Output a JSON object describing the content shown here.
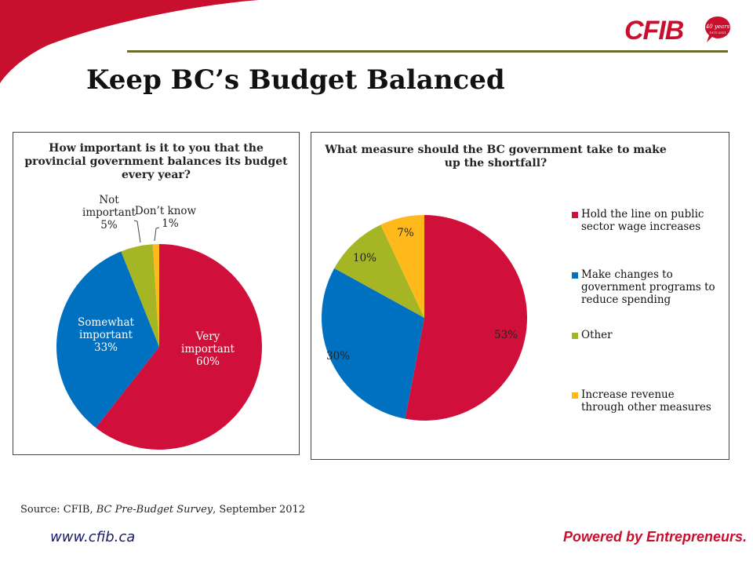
{
  "colors": {
    "red": "#D0103A",
    "blue": "#0070C0",
    "olive": "#A6B523",
    "orange": "#FFB91B",
    "brand_red": "#C8102E"
  },
  "header": {
    "title": "Keep BC’s Budget Balanced",
    "logo_text": "CFIB",
    "badge_line1": "40 years",
    "badge_line2": "1971-2011"
  },
  "chart_data": [
    {
      "type": "pie",
      "title": "How important is it to you that the provincial government balances its budget every year?",
      "slices": [
        {
          "label_lines": [
            "Very",
            "important",
            "60%"
          ],
          "value": 60,
          "color": "#D0103A"
        },
        {
          "label_lines": [
            "Somewhat",
            "important",
            "33%"
          ],
          "value": 33,
          "color": "#0070C0"
        },
        {
          "label_lines": [
            "Not",
            "important",
            "5%"
          ],
          "value": 5,
          "color": "#A6B523"
        },
        {
          "label_lines": [
            "Don’t know",
            "1%"
          ],
          "value": 1,
          "color": "#FFB91B"
        }
      ]
    },
    {
      "type": "pie",
      "title": "What measure should the BC government take to make up the shortfall?",
      "legend": "right",
      "slices": [
        {
          "name": "Hold the line on public sector wage increases",
          "value": 53,
          "value_label": "53%",
          "color": "#D0103A"
        },
        {
          "name": "Make changes to government programs to reduce spending",
          "value": 30,
          "value_label": "30%",
          "color": "#0070C0"
        },
        {
          "name": "Other",
          "value": 10,
          "value_label": "10%",
          "color": "#A6B523"
        },
        {
          "name": "Increase revenue through other measures",
          "value": 7,
          "value_label": "7%",
          "color": "#FFB91B"
        }
      ]
    }
  ],
  "footer": {
    "source_prefix": "Source: CFIB, ",
    "source_survey": "BC Pre-Budget Survey",
    "source_suffix": ", September 2012",
    "website": "www.cfib.ca",
    "tagline": "Powered by Entrepreneurs."
  }
}
